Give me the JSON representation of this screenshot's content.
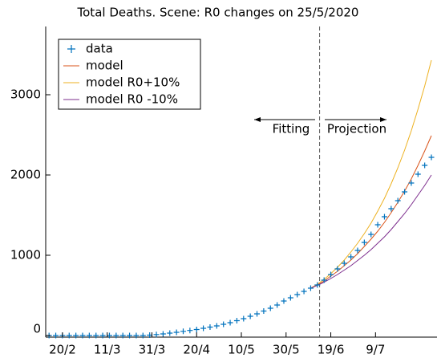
{
  "chart_data": {
    "type": "line",
    "title": "Total Deaths. Scene: R0 changes on 25/5/2020",
    "x": [
      -6,
      -3,
      0,
      3,
      6,
      9,
      12,
      15,
      18,
      21,
      24,
      27,
      30,
      33,
      36,
      39,
      42,
      45,
      48,
      51,
      54,
      57,
      60,
      63,
      66,
      69,
      72,
      75,
      78,
      81,
      84,
      87,
      90,
      93,
      96,
      99,
      102,
      105,
      108,
      111,
      114,
      117,
      120,
      123,
      126,
      129,
      132,
      135,
      138,
      141,
      144,
      147,
      150,
      153,
      156,
      159,
      162,
      165
    ],
    "series": [
      {
        "name": "data",
        "color": "#0072bd",
        "marker": "+",
        "values": [
          0,
          0,
          0,
          0,
          0,
          0,
          0,
          0,
          0,
          0,
          0,
          0,
          0,
          0,
          0,
          5,
          12,
          20,
          30,
          40,
          52,
          63,
          75,
          90,
          105,
          120,
          140,
          160,
          185,
          210,
          240,
          270,
          305,
          340,
          380,
          430,
          470,
          510,
          550,
          590,
          630,
          690,
          760,
          830,
          900,
          980,
          1060,
          1160,
          1260,
          1380,
          1480,
          1580,
          1680,
          1790,
          1900,
          2010,
          2120,
          2220
        ]
      },
      {
        "name": "model",
        "color": "#d95319",
        "values": [
          null,
          null,
          null,
          null,
          null,
          null,
          null,
          null,
          null,
          null,
          null,
          null,
          null,
          null,
          null,
          null,
          null,
          null,
          null,
          null,
          null,
          null,
          null,
          null,
          null,
          null,
          null,
          null,
          null,
          null,
          null,
          null,
          null,
          null,
          null,
          null,
          null,
          null,
          null,
          590,
          630,
          680,
          740,
          800,
          870,
          940,
          1020,
          1110,
          1200,
          1300,
          1410,
          1530,
          1660,
          1800,
          1950,
          2120,
          2300,
          2490
        ]
      },
      {
        "name": "model R0+10%",
        "color": "#edb120",
        "values": [
          null,
          null,
          null,
          null,
          null,
          null,
          null,
          null,
          null,
          null,
          null,
          null,
          null,
          null,
          null,
          null,
          null,
          null,
          null,
          null,
          null,
          null,
          null,
          null,
          null,
          null,
          null,
          null,
          null,
          null,
          null,
          null,
          null,
          null,
          null,
          null,
          null,
          null,
          null,
          590,
          640,
          700,
          770,
          850,
          940,
          1040,
          1150,
          1270,
          1400,
          1550,
          1710,
          1890,
          2090,
          2310,
          2550,
          2820,
          3110,
          3430
        ]
      },
      {
        "name": "model R0 -10%",
        "color": "#7e2f8e",
        "values": [
          null,
          null,
          null,
          null,
          null,
          null,
          null,
          null,
          null,
          null,
          null,
          null,
          null,
          null,
          null,
          null,
          null,
          null,
          null,
          null,
          null,
          null,
          null,
          null,
          null,
          null,
          null,
          null,
          null,
          null,
          null,
          null,
          null,
          null,
          null,
          null,
          null,
          null,
          null,
          590,
          625,
          665,
          710,
          760,
          815,
          870,
          935,
          1000,
          1070,
          1150,
          1230,
          1320,
          1420,
          1520,
          1630,
          1750,
          1870,
          2000
        ]
      }
    ],
    "xlim": [
      -7.5,
      167.5
    ],
    "xticks": [
      {
        "value": 0,
        "label": "20/2"
      },
      {
        "value": 20,
        "label": "11/3"
      },
      {
        "value": 40,
        "label": "31/3"
      },
      {
        "value": 60,
        "label": "20/4"
      },
      {
        "value": 80,
        "label": "10/5"
      },
      {
        "value": 100,
        "label": "30/5"
      },
      {
        "value": 120,
        "label": "19/6"
      },
      {
        "value": 140,
        "label": "9/7"
      }
    ],
    "ylim": [
      -20,
      3850
    ],
    "yticks": [
      0,
      1000,
      2000,
      3000
    ],
    "vline_x": 115,
    "annotations": [
      "Fitting",
      "Projection"
    ],
    "legend": "upper left"
  }
}
